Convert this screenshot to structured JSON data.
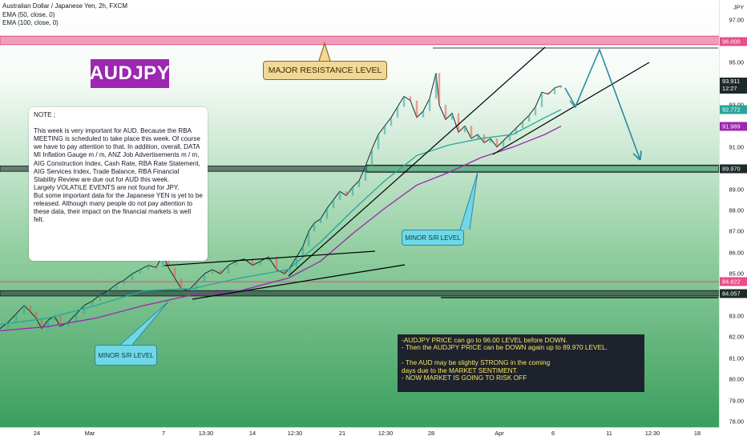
{
  "header": {
    "symbol_line": "Australian Dollar / Japanese Yen, 2h, FXCM",
    "ema50_label": "EMA (50, close, 0)",
    "ema100_label": "EMA (100, close, 0)"
  },
  "ticker_label": "AUDJPY",
  "note_text": "NOTE ;\n\nThis week is very important for AUD.  Because the RBA MEETING is scheduled to take place this week.  Of course we have to pay attention to that.  In addition, overall, DATA MI Inflation Gauge m / m, ANZ Job Advertisements m / m, AIG Construction Index, Cash Rate, RBA Rate Statement, AIG Services Index, Trade Balance, RBA Financial Stability Review are due out for AUD this week.\nLargely VOLATILE EVENTS are not found for JPY.\n  But some important data for the Japanese YEN is yet to be released.  Although many people do not pay attention to these data, their impact on the financial markets is well felt.",
  "annotations": {
    "major_resistance": "MAJOR RESISTANCE LEVEL",
    "minor_sr_1": "MINOR S/R LEVEL",
    "minor_sr_2": "MINOR S/R LEVEL"
  },
  "forecast_text": "-AUDJPY PRICE can go to 96.00 LEVEL before DOWN.\n-  Then the AUDJPY PRICE can be DOWN again up to 89.970 LEVEL.\n\n- The AUD may be slightly STRONG in the coming\n  days due to the MARKET SENTIMENT.\n- NOW MARKET IS GOING TO RISK OFF",
  "colors": {
    "bg_top": "#ffffff",
    "bg_bottom": "#3a9e5d",
    "resistance_zone": "#e64f87",
    "support_zone": "#1e2a2a",
    "ema50": "#26a69a",
    "ema100": "#9c27b0",
    "arrow": "#2c8aa0",
    "candle_up": "#26a69a",
    "candle_down": "#ef5350"
  },
  "chart_data": {
    "type": "line",
    "title": "Australian Dollar / Japanese Yen, 2h, FXCM",
    "xlabel": "",
    "ylabel": "",
    "currency": "JPY",
    "ylim": [
      77.0,
      98.0
    ],
    "x_ticks": [
      "24",
      "Mar",
      "7",
      "13:30",
      "14",
      "12:30",
      "21",
      "12:30",
      "28",
      "Apr",
      "6",
      "11",
      "12:30",
      "18"
    ],
    "y_ticks": [
      78.0,
      79.0,
      80.0,
      81.0,
      82.0,
      83.0,
      84.0,
      85.0,
      86.0,
      87.0,
      88.0,
      89.0,
      90.0,
      91.0,
      92.0,
      93.0,
      94.0,
      95.0,
      96.0,
      97.0
    ],
    "price_markers": [
      {
        "label": "96.000",
        "value": 96.0,
        "color": "#e64f87"
      },
      {
        "label": "93.911",
        "sub": "12:27",
        "value": 93.911,
        "color": "#1e2a2a"
      },
      {
        "label": "92.772",
        "value": 92.772,
        "color": "#26a69a"
      },
      {
        "label": "91.989",
        "value": 91.989,
        "color": "#9c27b0"
      },
      {
        "label": "89.970",
        "value": 89.97,
        "color": "#1e2a2a"
      },
      {
        "label": "84.622",
        "value": 84.622,
        "color": "#e64f87"
      },
      {
        "label": "84.057",
        "value": 84.057,
        "color": "#1e2a2a"
      }
    ],
    "levels": [
      {
        "type": "zone",
        "from": 95.85,
        "to": 96.25,
        "color": "#e64f87"
      },
      {
        "type": "zone",
        "from": 89.85,
        "to": 90.1,
        "color": "#1e2a2a"
      },
      {
        "type": "zone",
        "from": 83.95,
        "to": 84.2,
        "color": "#1e2a2a"
      },
      {
        "type": "line",
        "value": 84.622,
        "color": "#e64f87"
      }
    ],
    "series": [
      {
        "name": "AUDJPY",
        "x": [
          0,
          10,
          20,
          30,
          38,
          45,
          52,
          60,
          68,
          75,
          85,
          95,
          105,
          115,
          125,
          135,
          145,
          155,
          165,
          175,
          185,
          195,
          203,
          210,
          218,
          226,
          235,
          245,
          255,
          265,
          275,
          285,
          295,
          305,
          315,
          325,
          335,
          345,
          355,
          362,
          370,
          378,
          385,
          392,
          400,
          408,
          416,
          424,
          432,
          440,
          448,
          456,
          464,
          472,
          480,
          488,
          496,
          504,
          512,
          520,
          528,
          536,
          544,
          548,
          556,
          564,
          572,
          580,
          588,
          596,
          604,
          612,
          620,
          628,
          636,
          644,
          652,
          660,
          668,
          676,
          684,
          692,
          700
        ],
        "values": [
          82.4,
          82.7,
          83.1,
          83.5,
          83.2,
          82.9,
          82.4,
          82.8,
          83.0,
          82.5,
          82.7,
          83.1,
          83.5,
          83.7,
          84.0,
          84.2,
          84.5,
          84.7,
          85.0,
          85.2,
          85.4,
          85.3,
          85.9,
          85.3,
          84.8,
          84.3,
          84.2,
          84.6,
          85.0,
          85.2,
          85.0,
          85.4,
          85.6,
          85.7,
          85.4,
          85.6,
          85.8,
          85.2,
          85.0,
          85.3,
          85.8,
          86.3,
          87.0,
          87.4,
          87.6,
          88.1,
          88.5,
          88.9,
          88.7,
          89.1,
          89.4,
          90.1,
          90.9,
          91.6,
          92.0,
          92.4,
          92.9,
          93.4,
          93.2,
          92.4,
          92.7,
          93.3,
          94.5,
          93.0,
          92.3,
          92.6,
          91.7,
          92.0,
          91.4,
          91.6,
          91.2,
          91.4,
          91.0,
          91.3,
          91.6,
          91.9,
          92.2,
          92.5,
          92.9,
          93.6,
          93.5,
          93.8,
          93.9
        ]
      },
      {
        "name": "EMA (50, close, 0)",
        "x": [
          0,
          60,
          120,
          180,
          240,
          300,
          360,
          400,
          440,
          480,
          520,
          560,
          600,
          640,
          680,
          700
        ],
        "values": [
          82.6,
          82.9,
          83.5,
          84.2,
          84.3,
          84.8,
          85.2,
          86.5,
          88.0,
          89.4,
          90.6,
          91.1,
          91.4,
          91.6,
          92.4,
          92.77
        ]
      },
      {
        "name": "EMA (100, close, 0)",
        "x": [
          0,
          60,
          120,
          180,
          240,
          300,
          360,
          400,
          440,
          480,
          520,
          560,
          600,
          640,
          680,
          700
        ],
        "values": [
          82.3,
          82.5,
          82.9,
          83.5,
          84.0,
          84.2,
          84.8,
          85.6,
          86.9,
          88.1,
          89.2,
          89.8,
          90.5,
          91.0,
          91.6,
          91.99
        ]
      }
    ]
  }
}
